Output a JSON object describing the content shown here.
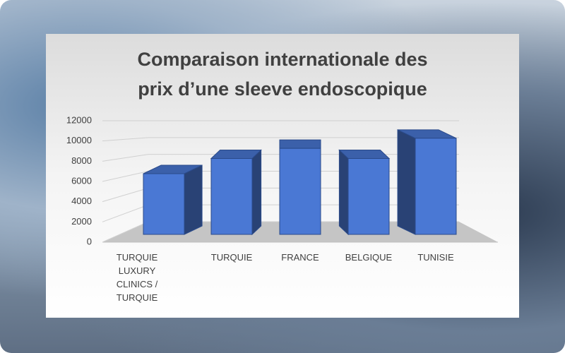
{
  "chart_data": {
    "type": "bar3d",
    "title": [
      "Comparaison internationale des",
      "prix d’une sleeve endoscopique"
    ],
    "categories": [
      "TURQUIE LUXURY CLINICS / TURQUIE",
      "TURQUIE",
      "FRANCE",
      "BELGIQUE",
      "TUNISIE"
    ],
    "values": [
      6000,
      7500,
      8500,
      7500,
      9500
    ],
    "color": "#4a78d4",
    "ylim": [
      0,
      12000
    ],
    "yticks": [
      0,
      2000,
      4000,
      6000,
      8000,
      10000,
      12000
    ],
    "grid": true
  }
}
